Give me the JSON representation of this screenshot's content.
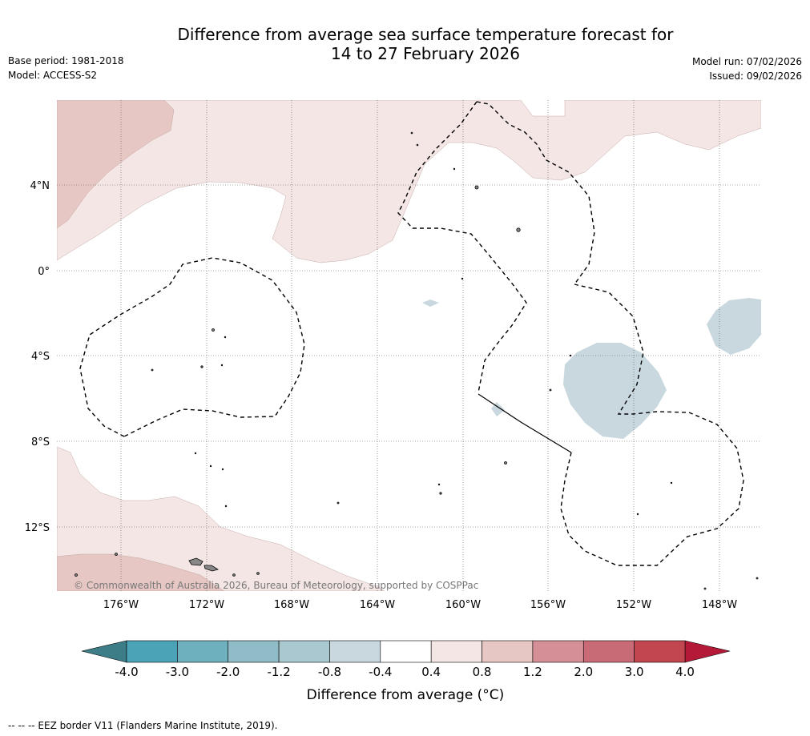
{
  "title": {
    "line1": "Difference from average sea surface temperature forecast for",
    "line2": "14 to 27 February 2026"
  },
  "meta": {
    "base_period": "Base period: 1981-2018",
    "model": "Model: ACCESS-S2",
    "model_run": "Model run: 07/02/2026",
    "issued": "Issued: 09/02/2026"
  },
  "map": {
    "lat_labels": [
      "4°N",
      "0°",
      "4°S",
      "8°S",
      "12°S"
    ],
    "lon_labels": [
      "176°W",
      "172°W",
      "168°W",
      "164°W",
      "160°W",
      "156°W",
      "152°W",
      "148°W"
    ],
    "copyright": "© Commonwealth of Australia 2026, Bureau of Meteorology, supported by COSPPac"
  },
  "colorbar": {
    "ticks": [
      "-4.0",
      "-3.0",
      "-2.0",
      "-1.2",
      "-0.8",
      "-0.4",
      "0.4",
      "0.8",
      "1.2",
      "2.0",
      "3.0",
      "4.0"
    ],
    "colors": [
      "#4aa3b6",
      "#6fb0bf",
      "#8fbcc7",
      "#aac8cf",
      "#c8d8de",
      "#ffffff",
      "#f3e6e4",
      "#e7c7c3",
      "#d59097",
      "#c96b76",
      "#c2464f"
    ],
    "low_extend_color": "#3d7d87",
    "high_extend_color": "#b41a38",
    "label": "Difference from average (°C)"
  },
  "footnote": "-- -- -- EEZ border V11 (Flanders Marine Institute, 2019)."
}
